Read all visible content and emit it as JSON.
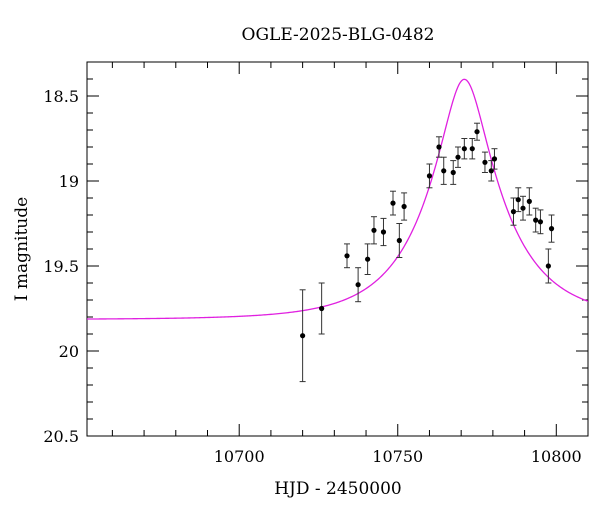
{
  "chart_data": {
    "type": "scatter",
    "title": "OGLE-2025-BLG-0482",
    "xlabel": "HJD - 2450000",
    "ylabel": "I magnitude",
    "xlim": [
      10652,
      10810
    ],
    "ylim": [
      20.5,
      18.3
    ],
    "y_inverted": true,
    "x_ticks": [
      10700,
      10750,
      10800
    ],
    "x_tick_labels": [
      "10700",
      "10750",
      "10800"
    ],
    "y_ticks": [
      18.5,
      19,
      19.5,
      20,
      20.5
    ],
    "y_tick_labels": [
      "18.5",
      "19",
      "19.5",
      "20",
      "20.5"
    ],
    "grid": false,
    "legend": "none",
    "series": [
      {
        "kind": "observations",
        "color": "#000000",
        "x": [
          10720,
          10726,
          10734,
          10737.5,
          10740.5,
          10742.5,
          10745.5,
          10748.5,
          10750.5,
          10752,
          10760,
          10763,
          10764.5,
          10767.5,
          10769,
          10771,
          10773.5,
          10775,
          10777.5,
          10779.5,
          10780.5,
          10786.5,
          10788,
          10789.5,
          10791.5,
          10793.5,
          10795,
          10797.5,
          10798.5
        ],
        "y": [
          19.91,
          19.75,
          19.44,
          19.61,
          19.46,
          19.29,
          19.3,
          19.13,
          19.35,
          19.15,
          18.97,
          18.8,
          18.94,
          18.95,
          18.86,
          18.81,
          18.81,
          18.71,
          18.89,
          18.94,
          18.87,
          19.18,
          19.11,
          19.16,
          19.12,
          19.23,
          19.24,
          19.5,
          19.28
        ],
        "err": [
          0.27,
          0.15,
          0.07,
          0.1,
          0.09,
          0.08,
          0.08,
          0.07,
          0.1,
          0.08,
          0.07,
          0.06,
          0.08,
          0.07,
          0.06,
          0.06,
          0.06,
          0.05,
          0.06,
          0.06,
          0.06,
          0.08,
          0.07,
          0.07,
          0.08,
          0.07,
          0.07,
          0.1,
          0.08
        ]
      },
      {
        "kind": "model",
        "color": "#e020e0",
        "line": "pspl",
        "u0": 0.28,
        "t0": 10771,
        "tE": 24,
        "base_mag": 19.815
      }
    ]
  }
}
